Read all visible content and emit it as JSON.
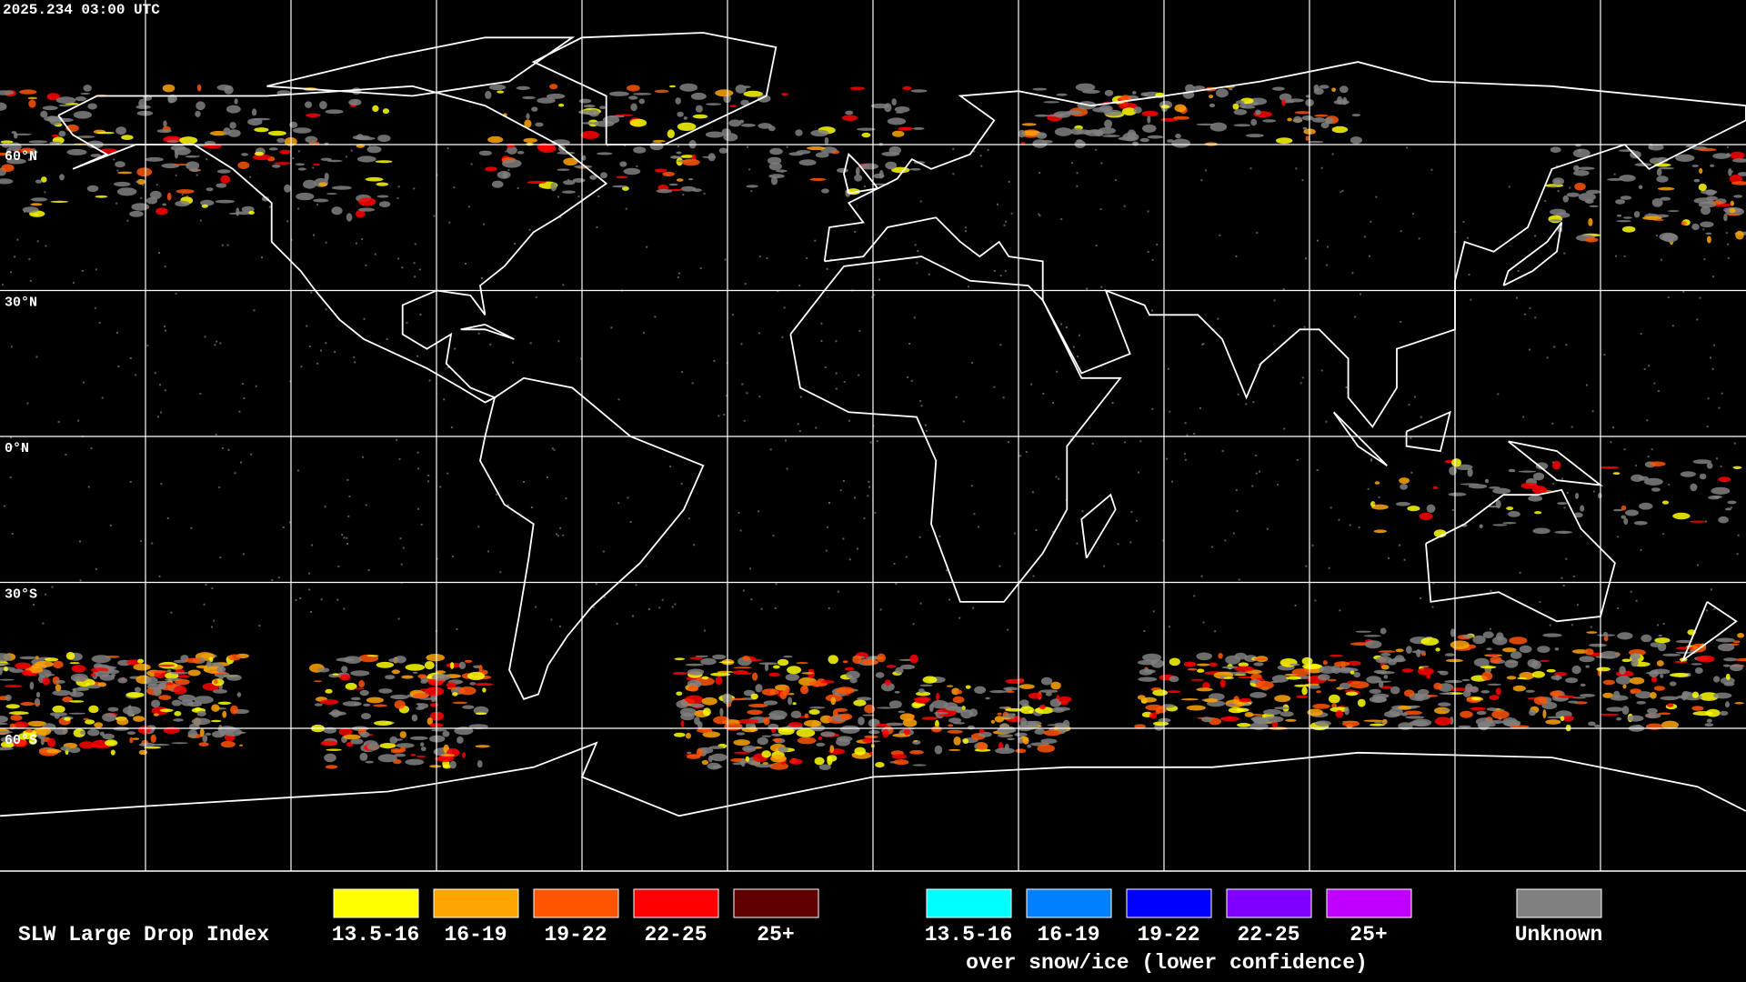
{
  "timestamp": "2025.234 03:00 UTC",
  "latitude_labels": [
    "60°N",
    "30°N",
    "0°N",
    "30°S",
    "60°S"
  ],
  "legend": {
    "title": "SLW Large Drop Index",
    "ranges": [
      "13.5-16",
      "16-19",
      "19-22",
      "22-25",
      "25+"
    ],
    "colors": [
      "#ffff00",
      "#ffa500",
      "#ff5500",
      "#ff0000",
      "#600000"
    ],
    "snow_ice_colors": [
      "#00ffff",
      "#0080ff",
      "#0000ff",
      "#8000ff",
      "#c000ff"
    ],
    "snow_ice_note": "over snow/ice (lower confidence)",
    "unknown": "Unknown",
    "unknown_color": "#808080"
  }
}
